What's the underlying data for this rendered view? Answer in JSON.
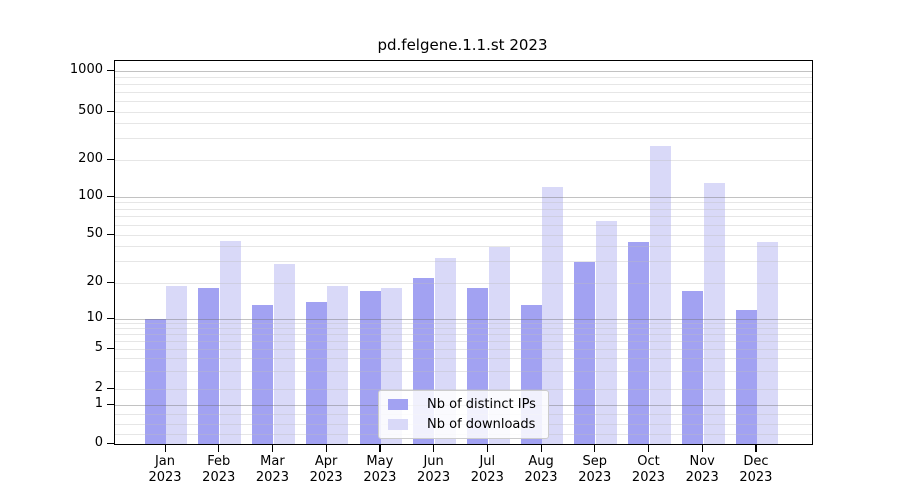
{
  "chart_data": {
    "type": "bar",
    "title": "pd.felgene.1.1.st 2023",
    "xlabel": "",
    "ylabel": "",
    "year_label": "2023",
    "categories": [
      "Jan",
      "Feb",
      "Mar",
      "Apr",
      "May",
      "Jun",
      "Jul",
      "Aug",
      "Sep",
      "Oct",
      "Nov",
      "Dec"
    ],
    "series": [
      {
        "name": "Nb of distinct IPs",
        "color": "#a2a2f2",
        "values": [
          10,
          18,
          13,
          14,
          17,
          22,
          18,
          13,
          30,
          44,
          17,
          12
        ]
      },
      {
        "name": "Nb of downloads",
        "color": "#d9d9f8",
        "values": [
          19,
          45,
          29,
          19,
          18,
          32,
          40,
          120,
          65,
          260,
          130,
          44
        ]
      }
    ],
    "yscale": "symlog",
    "ylim": [
      0,
      1000
    ],
    "yticks": [
      0,
      1,
      2,
      5,
      10,
      20,
      50,
      100,
      200,
      500,
      1000
    ],
    "grid": true,
    "grid_over_bars": true,
    "legend_position": "lower center",
    "colors": {
      "major_grid": "rgba(110,110,110,0.42)",
      "minor_grid": "rgba(190,190,190,0.38)",
      "spine": "#000000",
      "background": "#ffffff"
    }
  }
}
